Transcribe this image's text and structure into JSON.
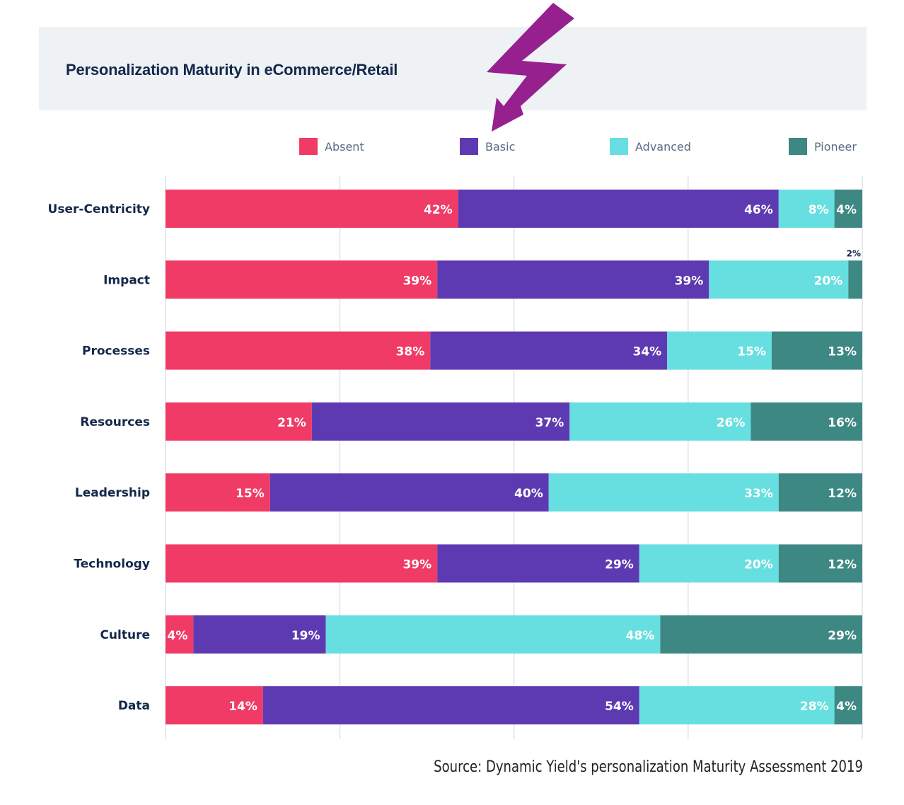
{
  "chart_data": {
    "type": "bar",
    "orientation": "horizontal",
    "stacked": true,
    "title": "Personalization Maturity in eCommerce/Retail",
    "xlabel": "",
    "ylabel": "",
    "xlim": [
      0,
      100
    ],
    "grid": true,
    "legend_position": "top",
    "categories": [
      "User-Centricity",
      "Impact",
      "Processes",
      "Resources",
      "Leadership",
      "Technology",
      "Culture",
      "Data"
    ],
    "series": [
      {
        "name": "Absent",
        "color": "#f03b66",
        "values": [
          42,
          39,
          38,
          21,
          15,
          39,
          4,
          14
        ]
      },
      {
        "name": "Basic",
        "color": "#5e3ab2",
        "values": [
          46,
          39,
          34,
          37,
          40,
          29,
          19,
          54
        ]
      },
      {
        "name": "Advanced",
        "color": "#67dfe0",
        "values": [
          8,
          20,
          15,
          26,
          33,
          20,
          48,
          28
        ]
      },
      {
        "name": "Pioneer",
        "color": "#3d8883",
        "values": [
          4,
          2,
          13,
          16,
          12,
          12,
          29,
          4
        ]
      }
    ],
    "data_label_suffix": "%",
    "annotations": [
      {
        "text": "2%",
        "target": "Impact / Pioneer",
        "placement": "above bar"
      }
    ]
  },
  "header": {
    "title": "Personalization Maturity in eCommerce/Retail"
  },
  "legend": [
    "Absent",
    "Basic",
    "Advanced",
    "Pioneer"
  ],
  "arrow": {
    "color": "#96208e",
    "icon": "lightning-arrow-icon"
  },
  "source": "Source: Dynamic Yield's personalization Maturity Assessment 2019"
}
